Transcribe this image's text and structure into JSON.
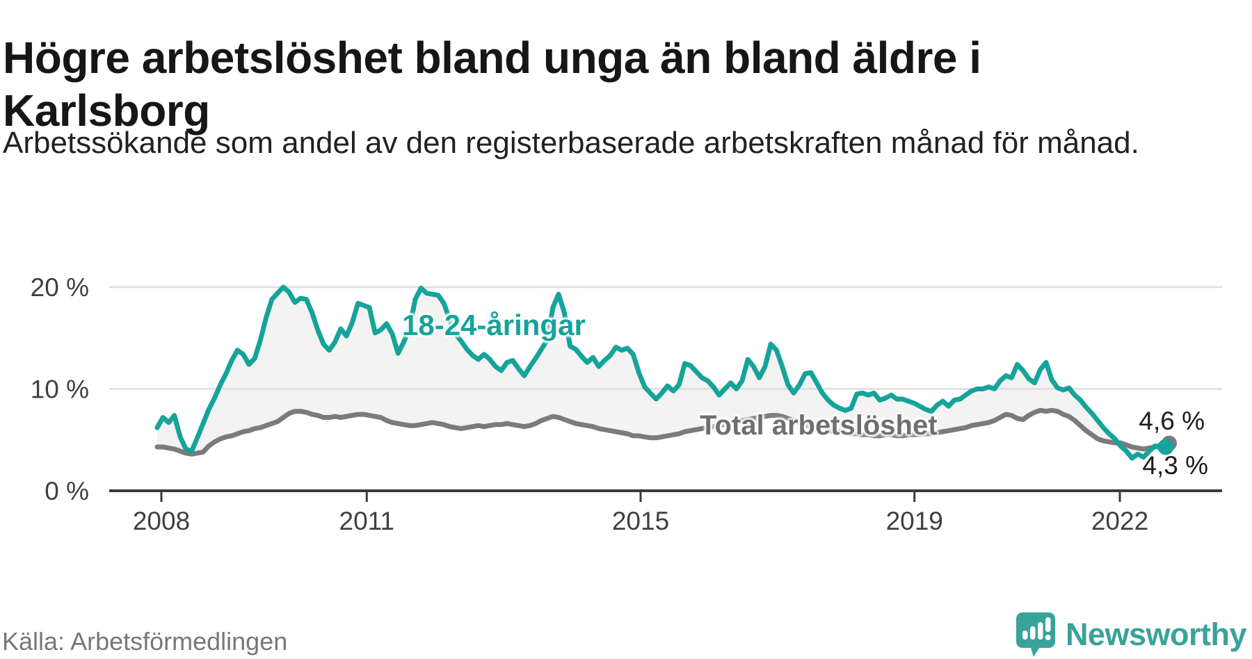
{
  "header": {
    "title": "Högre arbetslöshet bland unga än bland äldre i Karlsborg",
    "subtitle": "Arbetssökande som andel av den registerbaserade arbetskraften månad för månad."
  },
  "footer": {
    "source": "Källa: Arbetsförmedlingen",
    "brand_name": "Newsworthy",
    "brand_icon": "speech-bubble-bar-chart",
    "brand_color": "#38a39a"
  },
  "colors": {
    "youth_line": "#16a39a",
    "total_line": "#7b7b7b",
    "total_label": "#6f6f6f",
    "band_fill": "#f3f3f3",
    "gridline": "#dedede",
    "axis": "#3a3a3a",
    "tick_text": "#3f3f3f",
    "end_label_text": "#1c1c1c"
  },
  "chart_data": {
    "type": "line",
    "x_start": "2008-01",
    "x_end": "2022-09",
    "frequency": "monthly",
    "xlabel": "",
    "ylabel": "",
    "ylim": [
      0,
      20
    ],
    "grid": "horizontal",
    "y_ticks": [
      {
        "value": 0,
        "label": "0 %"
      },
      {
        "value": 10,
        "label": "10 %"
      },
      {
        "value": 20,
        "label": "20 %"
      }
    ],
    "x_ticks": [
      {
        "year": 2008,
        "label": "2008"
      },
      {
        "year": 2011,
        "label": "2011"
      },
      {
        "year": 2015,
        "label": "2015"
      },
      {
        "year": 2019,
        "label": "2019"
      },
      {
        "year": 2022,
        "label": "2022"
      }
    ],
    "series": [
      {
        "name": "18-24-åringar",
        "color": "#16a39a",
        "end_label": "4,3 %",
        "values": [
          6.2,
          7.2,
          6.7,
          7.4,
          5.3,
          4.1,
          3.9,
          5.2,
          6.6,
          8.0,
          9.1,
          10.4,
          11.5,
          12.8,
          13.8,
          13.4,
          12.4,
          13.0,
          14.8,
          17.0,
          18.8,
          19.4,
          20.0,
          19.5,
          18.5,
          18.9,
          18.8,
          17.5,
          15.8,
          14.4,
          13.8,
          14.6,
          15.9,
          15.2,
          16.5,
          18.4,
          18.2,
          18.0,
          15.5,
          15.8,
          16.4,
          15.4,
          13.5,
          14.6,
          16.0,
          18.8,
          19.9,
          19.4,
          19.3,
          19.2,
          18.4,
          16.8,
          15.4,
          14.7,
          13.9,
          13.3,
          12.9,
          13.4,
          12.9,
          12.2,
          11.8,
          12.6,
          12.8,
          12.0,
          11.3,
          12.2,
          13.0,
          13.9,
          14.8,
          18.0,
          19.3,
          17.5,
          14.2,
          13.9,
          13.2,
          12.6,
          13.1,
          12.2,
          12.8,
          13.3,
          14.1,
          13.8,
          14.0,
          13.4,
          11.6,
          10.2,
          9.6,
          9.0,
          9.6,
          10.3,
          9.8,
          10.4,
          12.5,
          12.3,
          11.7,
          11.1,
          10.8,
          10.2,
          9.4,
          10.0,
          10.6,
          10.0,
          10.8,
          12.9,
          12.2,
          11.1,
          12.2,
          14.4,
          13.8,
          12.2,
          10.4,
          9.6,
          10.4,
          11.5,
          11.6,
          10.6,
          9.6,
          8.9,
          8.4,
          8.1,
          7.9,
          8.1,
          9.5,
          9.6,
          9.4,
          9.6,
          8.9,
          9.1,
          9.4,
          9.0,
          9.0,
          8.8,
          8.6,
          8.3,
          8.0,
          7.8,
          8.4,
          8.8,
          8.3,
          8.9,
          9.0,
          9.4,
          9.8,
          10.0,
          10.0,
          10.2,
          10.0,
          10.8,
          11.3,
          11.1,
          12.4,
          11.8,
          11.0,
          10.6,
          11.9,
          12.6,
          10.9,
          10.1,
          9.9,
          10.1,
          9.4,
          8.9,
          8.2,
          7.6,
          6.9,
          6.2,
          5.6,
          5.1,
          4.4,
          3.9,
          3.2,
          3.6,
          3.3,
          3.9,
          4.4,
          4.2,
          4.3
        ]
      },
      {
        "name": "Total arbetslöshet",
        "color": "#7b7b7b",
        "end_label": "4,6 %",
        "values": [
          4.3,
          4.3,
          4.2,
          4.1,
          3.9,
          3.7,
          3.6,
          3.7,
          3.8,
          4.4,
          4.8,
          5.1,
          5.3,
          5.4,
          5.6,
          5.8,
          5.9,
          6.1,
          6.2,
          6.4,
          6.6,
          6.8,
          7.2,
          7.6,
          7.8,
          7.8,
          7.7,
          7.5,
          7.4,
          7.2,
          7.2,
          7.3,
          7.2,
          7.3,
          7.4,
          7.5,
          7.5,
          7.4,
          7.3,
          7.2,
          6.9,
          6.7,
          6.6,
          6.5,
          6.4,
          6.4,
          6.5,
          6.6,
          6.7,
          6.6,
          6.5,
          6.3,
          6.2,
          6.1,
          6.2,
          6.3,
          6.4,
          6.3,
          6.4,
          6.5,
          6.5,
          6.6,
          6.5,
          6.4,
          6.3,
          6.4,
          6.6,
          6.9,
          7.1,
          7.3,
          7.2,
          7.0,
          6.8,
          6.6,
          6.5,
          6.4,
          6.3,
          6.1,
          6.0,
          5.9,
          5.8,
          5.7,
          5.6,
          5.4,
          5.4,
          5.3,
          5.2,
          5.2,
          5.3,
          5.4,
          5.5,
          5.6,
          5.8,
          5.9,
          6.0,
          6.1,
          6.2,
          6.3,
          6.4,
          6.5,
          6.6,
          6.7,
          6.9,
          7.0,
          7.1,
          7.2,
          7.3,
          7.4,
          7.4,
          7.3,
          7.1,
          6.9,
          6.7,
          6.5,
          6.3,
          6.1,
          6.0,
          5.9,
          5.8,
          5.8,
          5.7,
          5.6,
          5.6,
          5.5,
          5.5,
          5.4,
          5.4,
          5.5,
          5.5,
          5.4,
          5.4,
          5.5,
          5.5,
          5.5,
          5.6,
          5.6,
          5.7,
          5.8,
          5.9,
          6.0,
          6.1,
          6.2,
          6.4,
          6.5,
          6.6,
          6.7,
          6.9,
          7.2,
          7.5,
          7.4,
          7.1,
          7.0,
          7.4,
          7.7,
          7.9,
          7.8,
          7.9,
          7.8,
          7.5,
          7.3,
          6.9,
          6.4,
          5.9,
          5.5,
          5.1,
          4.9,
          4.8,
          4.7,
          4.7,
          4.5,
          4.3,
          4.2,
          4.1,
          4.2,
          4.3,
          4.5,
          4.6
        ]
      }
    ],
    "end_value_labels": {
      "total": "4,6 %",
      "youth": "4,3 %"
    }
  }
}
